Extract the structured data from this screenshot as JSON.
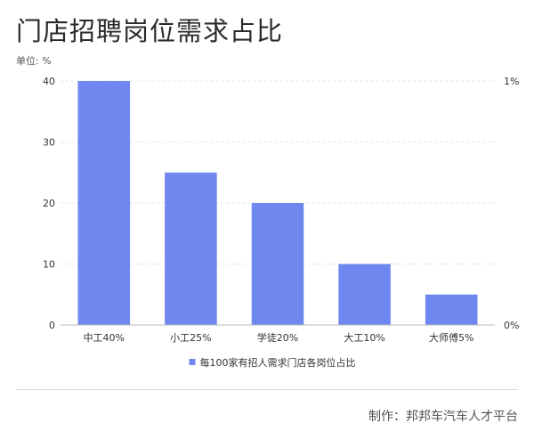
{
  "header": {
    "title": "门店招聘岗位需求占比",
    "unit": "单位: %"
  },
  "footer": {
    "credit": "制作：邦邦车汽车人才平台"
  },
  "colors": {
    "bar": "#6e88f0",
    "grid": "#e3e3e3",
    "axis": "#bbbbbb",
    "text": "#333333"
  },
  "chart_data": {
    "type": "bar",
    "categories": [
      "中工40%",
      "小工25%",
      "学徒20%",
      "大工10%",
      "大师傅5%"
    ],
    "series": [
      {
        "name": "每100家有招人需求门店各岗位占比",
        "values": [
          40,
          25,
          20,
          10,
          5
        ]
      }
    ],
    "ylim": [
      0,
      40
    ],
    "yticks": [
      "0",
      "10",
      "20",
      "30",
      "40"
    ],
    "y2ticks": [
      "0%",
      "1%"
    ],
    "grid": true,
    "legend": "bottom"
  }
}
